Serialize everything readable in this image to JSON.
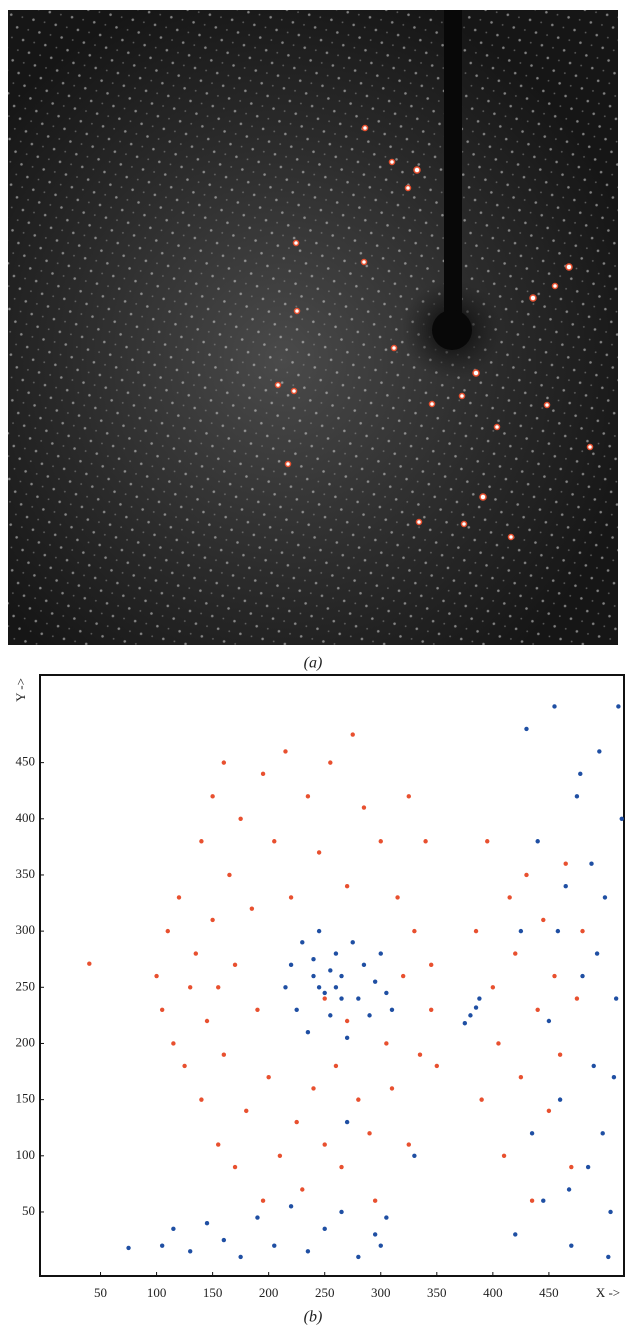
{
  "panel_a": {
    "label": "(a)"
  },
  "chart_data": {
    "type": "scatter",
    "label": "(b)",
    "x_label": "X ->",
    "y_label": "Y ->",
    "xlim": [
      -4,
      517
    ],
    "ylim": [
      -7,
      528
    ],
    "xticks": [
      50,
      100,
      150,
      200,
      250,
      300,
      350,
      400,
      450
    ],
    "yticks": [
      50,
      100,
      150,
      200,
      250,
      300,
      350,
      400,
      450
    ],
    "series": [
      {
        "color": "#e8502f",
        "x": [
          40,
          100,
          105,
          110,
          115,
          120,
          125,
          130,
          135,
          140,
          140,
          145,
          150,
          150,
          155,
          155,
          160,
          160,
          165,
          170,
          170,
          175,
          180,
          185,
          190,
          195,
          195,
          200,
          205,
          210,
          215,
          220,
          225,
          230,
          235,
          240,
          245,
          250,
          255,
          260,
          265,
          270,
          275,
          280,
          285,
          290,
          295,
          300,
          305,
          310,
          315,
          320,
          325,
          330,
          335,
          340,
          345,
          350,
          325,
          345,
          385,
          390,
          395,
          400,
          405,
          410,
          415,
          420,
          425,
          430,
          435,
          440,
          445,
          450,
          455,
          460,
          465,
          470,
          475,
          480,
          250,
          270
        ],
        "y": [
          271,
          260,
          230,
          300,
          200,
          330,
          180,
          250,
          280,
          150,
          380,
          220,
          420,
          310,
          110,
          250,
          190,
          450,
          350,
          90,
          270,
          400,
          140,
          320,
          230,
          60,
          440,
          170,
          380,
          100,
          460,
          330,
          130,
          70,
          420,
          160,
          370,
          110,
          450,
          180,
          90,
          340,
          475,
          150,
          410,
          120,
          60,
          380,
          200,
          160,
          330,
          260,
          110,
          300,
          190,
          380,
          270,
          180,
          420,
          230,
          300,
          150,
          380,
          250,
          200,
          100,
          330,
          280,
          170,
          350,
          60,
          230,
          310,
          140,
          260,
          190,
          360,
          90,
          240,
          300,
          240,
          220
        ]
      },
      {
        "color": "#1f4fa3",
        "x": [
          215,
          220,
          225,
          230,
          235,
          240,
          245,
          250,
          255,
          260,
          265,
          270,
          275,
          280,
          285,
          290,
          295,
          300,
          305,
          310,
          245,
          255,
          265,
          240,
          260,
          75,
          105,
          115,
          130,
          145,
          160,
          175,
          190,
          205,
          220,
          235,
          250,
          265,
          280,
          295,
          305,
          300,
          375,
          380,
          385,
          388,
          420,
          425,
          430,
          435,
          440,
          445,
          450,
          455,
          460,
          465,
          470,
          475,
          480,
          485,
          490,
          495,
          500,
          505,
          510,
          515,
          498,
          512,
          488,
          503,
          493,
          508,
          478,
          468,
          458,
          270,
          330
        ],
        "y": [
          250,
          270,
          230,
          290,
          210,
          260,
          300,
          245,
          225,
          280,
          260,
          205,
          290,
          240,
          270,
          225,
          255,
          280,
          245,
          230,
          250,
          265,
          240,
          275,
          250,
          18,
          20,
          35,
          15,
          40,
          25,
          10,
          45,
          20,
          55,
          15,
          35,
          50,
          10,
          30,
          45,
          20,
          218,
          225,
          232,
          240,
          30,
          300,
          480,
          120,
          380,
          60,
          220,
          500,
          150,
          340,
          20,
          420,
          260,
          90,
          180,
          460,
          330,
          50,
          240,
          400,
          120,
          500,
          360,
          10,
          280,
          170,
          440,
          70,
          300,
          130,
          100
        ]
      }
    ]
  }
}
